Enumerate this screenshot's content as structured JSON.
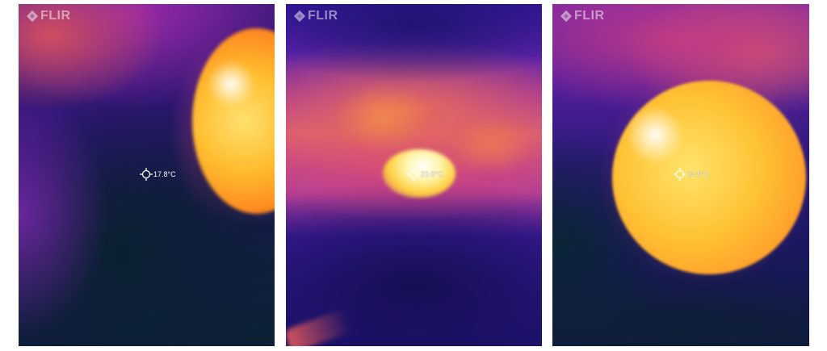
{
  "brand": "FLIR",
  "panels": [
    {
      "temperature": "17.8°C"
    },
    {
      "temperature": "23.8°C"
    },
    {
      "temperature": "24.9°C"
    }
  ],
  "palette": {
    "cold": "#0c2233",
    "mid": "#5a1fa0",
    "warm": "#e0607a",
    "hot": "#ffc235",
    "hottest": "#ffffff"
  }
}
